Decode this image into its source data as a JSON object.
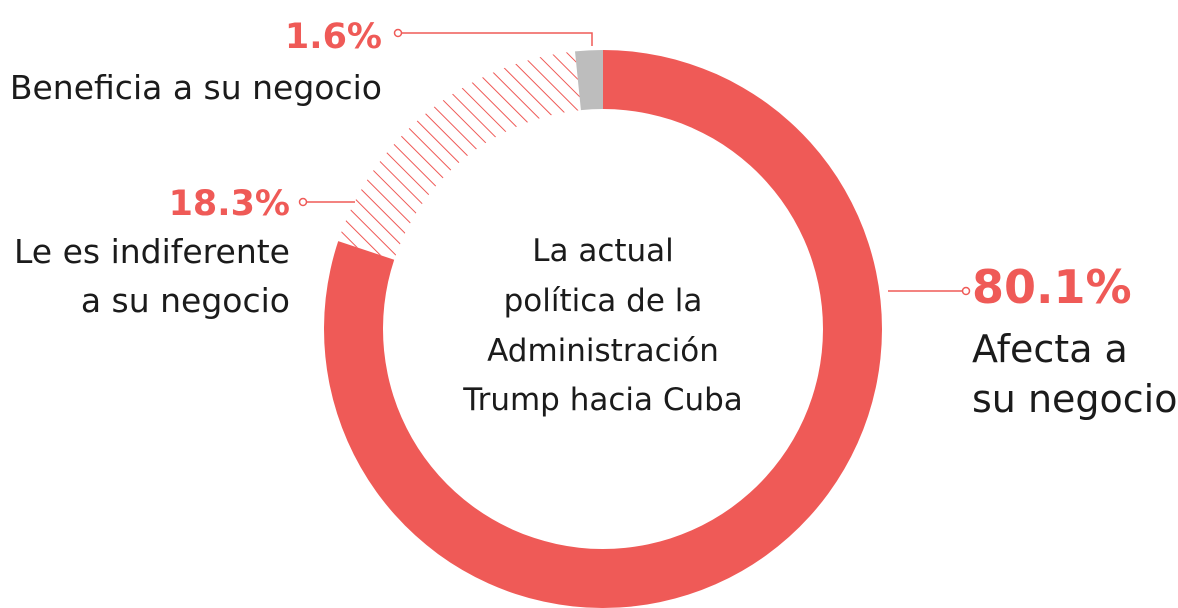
{
  "chart_data": {
    "type": "pie",
    "donut": true,
    "center_label": [
      "La actual",
      "política de la",
      "Administración",
      "Trump hacia Cuba"
    ],
    "slices": [
      {
        "value": 80.1,
        "percent_label": "80.1%",
        "label_lines": [
          "Afecta a",
          "su negocio"
        ],
        "color": "#ef5a57",
        "pattern": "solid"
      },
      {
        "value": 18.3,
        "percent_label": "18.3%",
        "label_lines": [
          "Le es indiferente",
          "a su negocio"
        ],
        "color": "#ef5a57",
        "pattern": "hatched"
      },
      {
        "value": 1.6,
        "percent_label": "1.6%",
        "label_lines": [
          "Beneficia a su negocio"
        ],
        "color": "#bdbdbd",
        "pattern": "solid"
      }
    ]
  },
  "colors": {
    "accent": "#ef5a57",
    "neutral": "#bdbdbd",
    "text": "#1b1b1b"
  }
}
